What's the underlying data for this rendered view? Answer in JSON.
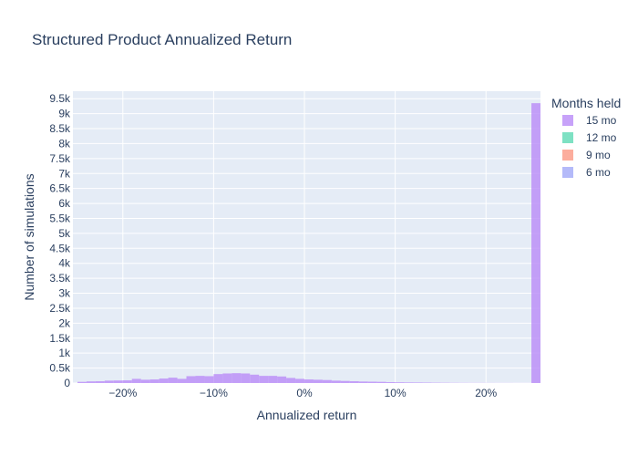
{
  "chart_data": {
    "type": "bar",
    "title": "Structured Product Annualized Return",
    "xlabel": "Annualized return",
    "ylabel": "Number of simulations",
    "x_range": [
      -0.255,
      0.26
    ],
    "y_range": [
      0,
      9750
    ],
    "x_ticks": [
      {
        "value": -0.2,
        "label": "−20%"
      },
      {
        "value": -0.1,
        "label": "−10%"
      },
      {
        "value": 0.0,
        "label": "0%"
      },
      {
        "value": 0.1,
        "label": "10%"
      },
      {
        "value": 0.2,
        "label": "20%"
      }
    ],
    "y_ticks": [
      {
        "value": 0,
        "label": "0"
      },
      {
        "value": 500,
        "label": "0.5k"
      },
      {
        "value": 1000,
        "label": "1k"
      },
      {
        "value": 1500,
        "label": "1.5k"
      },
      {
        "value": 2000,
        "label": "2k"
      },
      {
        "value": 2500,
        "label": "2.5k"
      },
      {
        "value": 3000,
        "label": "3k"
      },
      {
        "value": 3500,
        "label": "3.5k"
      },
      {
        "value": 4000,
        "label": "4k"
      },
      {
        "value": 4500,
        "label": "4.5k"
      },
      {
        "value": 5000,
        "label": "5k"
      },
      {
        "value": 5500,
        "label": "5.5k"
      },
      {
        "value": 6000,
        "label": "6k"
      },
      {
        "value": 6500,
        "label": "6.5k"
      },
      {
        "value": 7000,
        "label": "7k"
      },
      {
        "value": 7500,
        "label": "7.5k"
      },
      {
        "value": 8000,
        "label": "8k"
      },
      {
        "value": 8500,
        "label": "8.5k"
      },
      {
        "value": 9000,
        "label": "9k"
      },
      {
        "value": 9500,
        "label": "9.5k"
      }
    ],
    "grid": true,
    "legend_position": "right",
    "legend_title": "Months held",
    "colors": {
      "plot_bg": "#e5ecf6",
      "grid": "#ffffff",
      "text": "#2a3f5f"
    },
    "series": [
      {
        "name": "15 mo",
        "color": "#b98bf7",
        "bin_width": 0.01,
        "bins": [
          {
            "x0": -0.25,
            "count": 40
          },
          {
            "x0": -0.24,
            "count": 55
          },
          {
            "x0": -0.23,
            "count": 60
          },
          {
            "x0": -0.22,
            "count": 80
          },
          {
            "x0": -0.21,
            "count": 85
          },
          {
            "x0": -0.2,
            "count": 90
          },
          {
            "x0": -0.19,
            "count": 140
          },
          {
            "x0": -0.18,
            "count": 110
          },
          {
            "x0": -0.17,
            "count": 120
          },
          {
            "x0": -0.16,
            "count": 150
          },
          {
            "x0": -0.15,
            "count": 180
          },
          {
            "x0": -0.14,
            "count": 140
          },
          {
            "x0": -0.13,
            "count": 230
          },
          {
            "x0": -0.12,
            "count": 240
          },
          {
            "x0": -0.11,
            "count": 230
          },
          {
            "x0": -0.1,
            "count": 300
          },
          {
            "x0": -0.09,
            "count": 320
          },
          {
            "x0": -0.08,
            "count": 330
          },
          {
            "x0": -0.07,
            "count": 320
          },
          {
            "x0": -0.06,
            "count": 280
          },
          {
            "x0": -0.05,
            "count": 240
          },
          {
            "x0": -0.04,
            "count": 240
          },
          {
            "x0": -0.03,
            "count": 220
          },
          {
            "x0": -0.02,
            "count": 170
          },
          {
            "x0": -0.01,
            "count": 140
          },
          {
            "x0": 0.0,
            "count": 120
          },
          {
            "x0": 0.01,
            "count": 110
          },
          {
            "x0": 0.02,
            "count": 100
          },
          {
            "x0": 0.03,
            "count": 80
          },
          {
            "x0": 0.04,
            "count": 70
          },
          {
            "x0": 0.05,
            "count": 60
          },
          {
            "x0": 0.06,
            "count": 50
          },
          {
            "x0": 0.07,
            "count": 45
          },
          {
            "x0": 0.08,
            "count": 40
          },
          {
            "x0": 0.09,
            "count": 30
          },
          {
            "x0": 0.1,
            "count": 25
          },
          {
            "x0": 0.11,
            "count": 20
          },
          {
            "x0": 0.12,
            "count": 18
          },
          {
            "x0": 0.13,
            "count": 15
          },
          {
            "x0": 0.14,
            "count": 12
          },
          {
            "x0": 0.15,
            "count": 10
          },
          {
            "x0": 0.16,
            "count": 8
          },
          {
            "x0": 0.17,
            "count": 6
          },
          {
            "x0": 0.18,
            "count": 5
          },
          {
            "x0": 0.19,
            "count": 5
          },
          {
            "x0": 0.2,
            "count": 4
          },
          {
            "x0": 0.21,
            "count": 3
          },
          {
            "x0": 0.22,
            "count": 3
          },
          {
            "x0": 0.23,
            "count": 2
          },
          {
            "x0": 0.24,
            "count": 2
          },
          {
            "x0": 0.25,
            "count": 9350
          }
        ]
      },
      {
        "name": "12 mo",
        "color": "#5ed9b4",
        "bin_width": 0.01,
        "bins": []
      },
      {
        "name": "9 mo",
        "color": "#fb9985",
        "bin_width": 0.01,
        "bins": []
      },
      {
        "name": "6 mo",
        "color": "#a1a9f7",
        "bin_width": 0.01,
        "bins": []
      }
    ]
  }
}
